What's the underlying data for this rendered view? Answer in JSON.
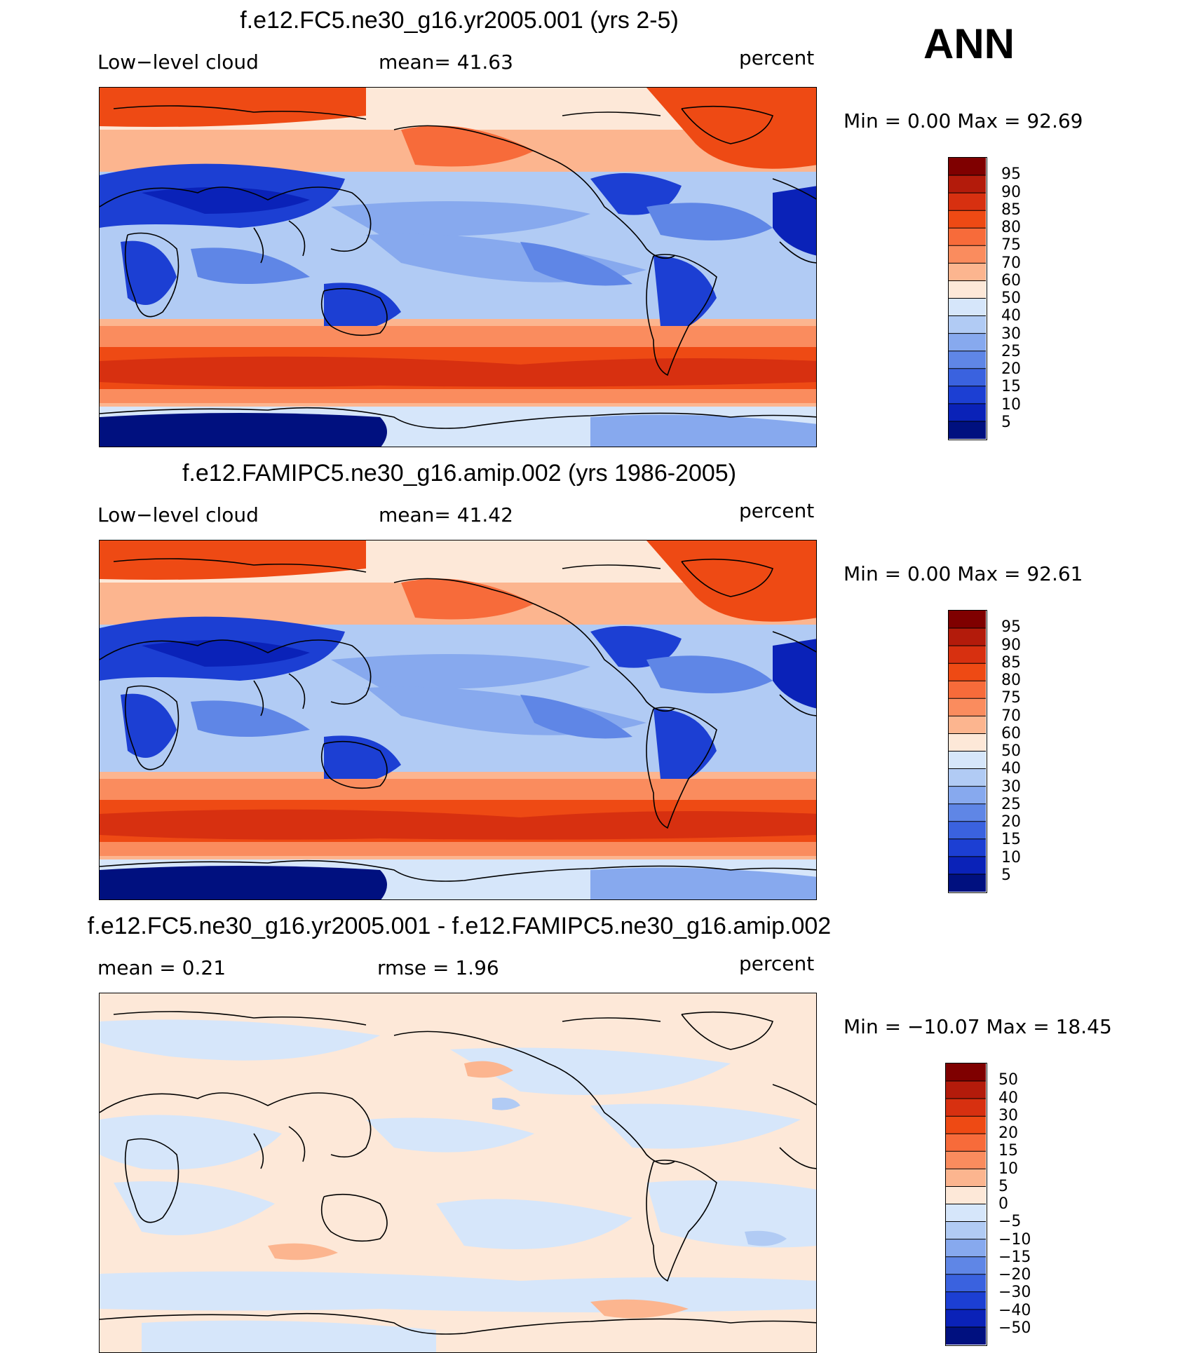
{
  "season_label": "ANN",
  "panels": [
    {
      "title": "f.e12.FC5.ne30_g16.yr2005.001 (yrs 2-5)",
      "left_label": "Low−level cloud",
      "mid_label": "mean=   41.63",
      "right_label": "",
      "units": "percent",
      "minmax": "Min  =     0.00  Max  =    92.69",
      "palette": "abs"
    },
    {
      "title": "f.e12.FAMIPC5.ne30_g16.amip.002 (yrs 1986-2005)",
      "left_label": "Low−level cloud",
      "mid_label": "mean=   41.42",
      "right_label": "",
      "units": "percent",
      "minmax": "Min  =     0.00  Max  =    92.61",
      "palette": "abs"
    },
    {
      "title": "f.e12.FC5.ne30_g16.yr2005.001 - f.e12.FAMIPC5.ne30_g16.amip.002",
      "left_label": "mean  =     0.21",
      "mid_label": "rmse  =     1.96",
      "right_label": "",
      "units": "percent",
      "minmax": "Min  = −10.07  Max  =    18.45",
      "palette": "diff"
    }
  ],
  "colorbars": {
    "abs": {
      "labels": [
        "95",
        "90",
        "85",
        "80",
        "75",
        "70",
        "60",
        "50",
        "40",
        "30",
        "25",
        "20",
        "15",
        "10",
        "5"
      ],
      "colors": [
        "#7f0000",
        "#b31b0b",
        "#d73010",
        "#ee4a14",
        "#f76b3a",
        "#fa8c5e",
        "#fcb58f",
        "#fde8d8",
        "#d6e6fa",
        "#b1cbf4",
        "#87a9ee",
        "#5f86e6",
        "#3a62df",
        "#1c3fd3",
        "#0a22b8",
        "#00107f"
      ]
    },
    "diff": {
      "labels": [
        "50",
        "40",
        "30",
        "20",
        "15",
        "10",
        "5",
        "0",
        "−5",
        "−10",
        "−15",
        "−20",
        "−30",
        "−40",
        "−50"
      ],
      "colors": [
        "#7f0000",
        "#b31b0b",
        "#d73010",
        "#ee4a14",
        "#f76b3a",
        "#fa8c5e",
        "#fcb58f",
        "#fde8d8",
        "#d6e6fa",
        "#b1cbf4",
        "#87a9ee",
        "#5f86e6",
        "#3a62df",
        "#1c3fd3",
        "#0a22b8",
        "#00107f"
      ]
    }
  }
}
